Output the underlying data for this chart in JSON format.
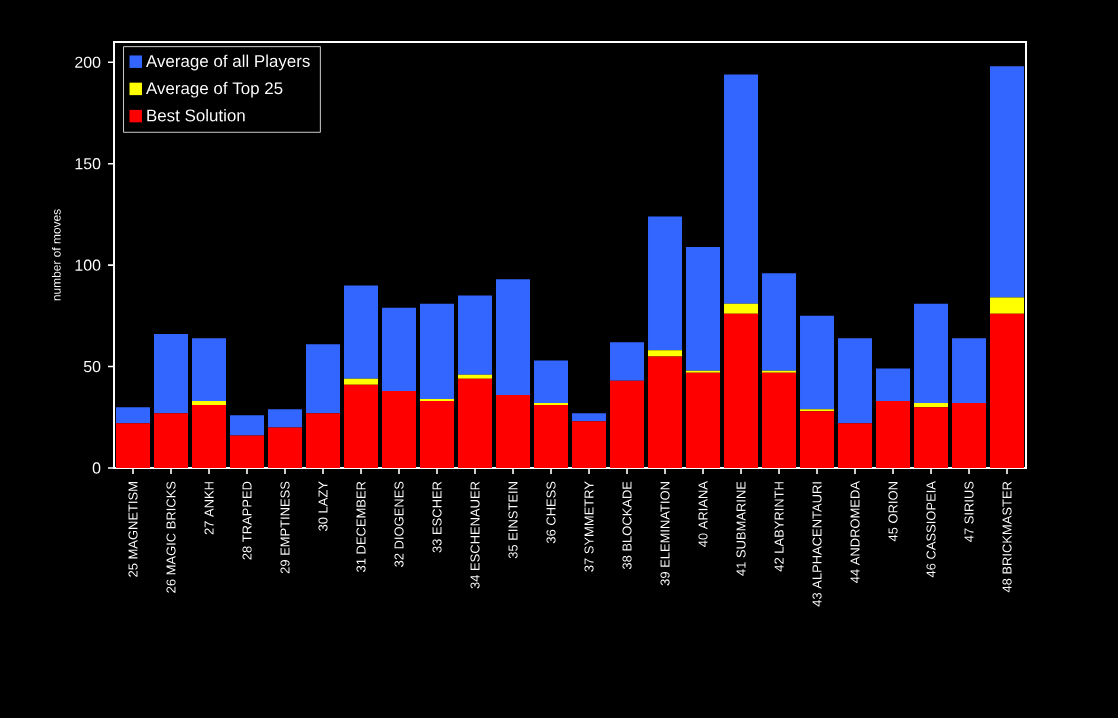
{
  "chart_data": {
    "type": "bar",
    "stacked": true,
    "ylabel": "number of moves",
    "ylim": [
      0,
      210
    ],
    "yticks": [
      0,
      50,
      100,
      150,
      200
    ],
    "legend": "top left",
    "categories": [
      "25 MAGNETISM",
      "26 MAGIC BRICKS",
      "27 ANKH",
      "28 TRAPPED",
      "29 EMPTINESS",
      "30 LAZY",
      "31 DECEMBER",
      "32 DIOGENES",
      "33 ESCHER",
      "34 ESCHENAUER",
      "35 EINSTEIN",
      "36 CHESS",
      "37 SYMMETRY",
      "38 BLOCKADE",
      "39 ELEMINATION",
      "40 ARIANA",
      "41 SUBMARINE",
      "42 LABYRINTH",
      "43 ALPHACENTAURI",
      "44 ANDROMEDA",
      "45 ORION",
      "46 CASSIOPEIA",
      "47 SIRIUS",
      "48 BRICKMASTER"
    ],
    "series": [
      {
        "name": "Best Solution",
        "color": "#ff0000",
        "values": [
          22,
          27,
          31,
          16,
          20,
          27,
          41,
          38,
          33,
          44,
          36,
          31,
          23,
          43,
          55,
          47,
          76,
          47,
          28,
          22,
          33,
          30,
          32,
          76
        ]
      },
      {
        "name": "Average of Top 25",
        "color": "#ffff00",
        "values": [
          0,
          0,
          2,
          0,
          0,
          0,
          3,
          0,
          1,
          2,
          0,
          1,
          0,
          0,
          3,
          1,
          5,
          1,
          1,
          0,
          0,
          2,
          0,
          8
        ]
      },
      {
        "name": "Average of all Players",
        "color": "#3366ff",
        "values": [
          8,
          39,
          31,
          10,
          9,
          34,
          46,
          41,
          47,
          39,
          57,
          21,
          4,
          19,
          66,
          61,
          113,
          48,
          46,
          42,
          16,
          49,
          32,
          114
        ]
      }
    ]
  }
}
